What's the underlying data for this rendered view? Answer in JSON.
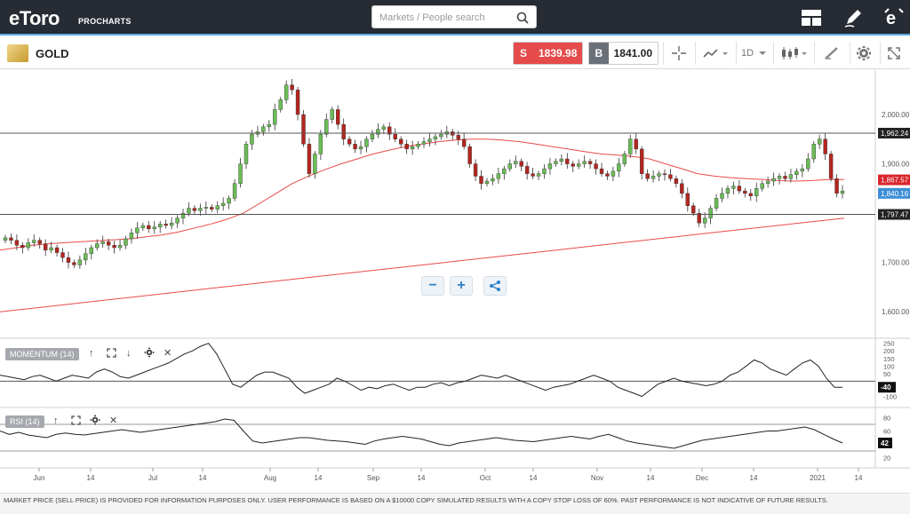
{
  "header": {
    "logo_text": "eToro",
    "logo_sub": "PROCHARTS",
    "search_placeholder": "Markets / People search"
  },
  "instrument": {
    "name": "GOLD",
    "sell_tag": "S",
    "sell_price": "1839.98",
    "buy_tag": "B",
    "buy_price": "1841.00",
    "timeframe": "1D"
  },
  "colors": {
    "sell": "#e54b4b",
    "buy": "#6b6f78",
    "up": "#6bbd56",
    "down": "#b3251f",
    "ma": "#e94a4a",
    "accent": "#2b82c9"
  },
  "price_axis": {
    "ticks": [
      "2,000.00",
      "1,900.00",
      "1,800.00",
      "1,700.00",
      "1,600.00"
    ],
    "badges": [
      {
        "label": "1,962.24",
        "color": "#222222",
        "value": 1962.24
      },
      {
        "label": "1,867.57",
        "color": "#d9262c",
        "value": 1867.57
      },
      {
        "label": "1,840.16",
        "color": "#3c8fd6",
        "value": 1840.16
      },
      {
        "label": "1,797.47",
        "color": "#222222",
        "value": 1797.47
      }
    ]
  },
  "time_axis": {
    "labels": [
      "Jun",
      "14",
      "Jul",
      "14",
      "Aug",
      "14",
      "Sep",
      "14",
      "Oct",
      "14",
      "Nov",
      "14",
      "Dec",
      "14",
      "2021",
      "14"
    ]
  },
  "indicators": {
    "momentum": {
      "label": "MOMENTUM (14)",
      "ticks": [
        "250",
        "200",
        "150",
        "100",
        "50",
        "-100"
      ],
      "badge": "-40"
    },
    "rsi": {
      "label": "RSI (14)",
      "ticks": [
        "80",
        "60",
        "20"
      ],
      "badge": "42"
    }
  },
  "disclaimer": "MARKET PRICE (SELL PRICE) IS PROVIDED FOR INFORMATION PURPOSES ONLY. USER PERFORMANCE IS BASED ON A $10000 COPY SIMULATED RESULTS WITH A COPY STOP LOSS OF 60%. PAST PERFORMANCE IS NOT INDICATIVE OF FUTURE RESULTS.",
  "chart_data": {
    "type": "candlestick",
    "price_range": [
      1550,
      2090
    ],
    "horizontal_lines": [
      1962.24,
      1797.47
    ],
    "ohlc_close_path": [
      1750,
      1745,
      1735,
      1730,
      1740,
      1745,
      1738,
      1725,
      1730,
      1720,
      1710,
      1700,
      1695,
      1705,
      1718,
      1730,
      1738,
      1742,
      1735,
      1730,
      1735,
      1748,
      1760,
      1770,
      1775,
      1768,
      1772,
      1778,
      1775,
      1780,
      1790,
      1800,
      1810,
      1805,
      1810,
      1812,
      1808,
      1815,
      1820,
      1830,
      1860,
      1900,
      1940,
      1960,
      1965,
      1975,
      1980,
      2010,
      2030,
      2060,
      2050,
      2000,
      1940,
      1880,
      1920,
      1960,
      1990,
      2010,
      1980,
      1950,
      1940,
      1930,
      1935,
      1950,
      1960,
      1970,
      1975,
      1960,
      1950,
      1940,
      1930,
      1935,
      1940,
      1945,
      1950,
      1955,
      1960,
      1965,
      1958,
      1950,
      1935,
      1900,
      1875,
      1860,
      1865,
      1870,
      1880,
      1890,
      1900,
      1905,
      1895,
      1880,
      1875,
      1880,
      1890,
      1900,
      1905,
      1910,
      1900,
      1895,
      1900,
      1905,
      1900,
      1890,
      1880,
      1875,
      1885,
      1900,
      1920,
      1950,
      1930,
      1880,
      1870,
      1875,
      1880,
      1878,
      1870,
      1860,
      1840,
      1815,
      1800,
      1780,
      1790,
      1810,
      1830,
      1840,
      1850,
      1855,
      1845,
      1840,
      1835,
      1850,
      1860,
      1865,
      1870,
      1875,
      1870,
      1878,
      1885,
      1890,
      1910,
      1940,
      1950,
      1920,
      1870,
      1840,
      1845
    ],
    "ma_short": [
      1725,
      1730,
      1735,
      1738,
      1740,
      1742,
      1744,
      1746,
      1748,
      1752,
      1756,
      1762,
      1770,
      1778,
      1788,
      1800,
      1820,
      1840,
      1860,
      1875,
      1888,
      1900,
      1910,
      1920,
      1928,
      1935,
      1940,
      1945,
      1948,
      1950,
      1950,
      1948,
      1945,
      1940,
      1935,
      1930,
      1925,
      1920,
      1918,
      1915,
      1910,
      1900,
      1890,
      1880,
      1875,
      1872,
      1870,
      1868,
      1866,
      1865,
      1866,
      1868,
      1868
    ],
    "ma_long": [
      1600,
      1610,
      1620,
      1630,
      1640,
      1650,
      1660,
      1670,
      1680,
      1690,
      1700,
      1710,
      1720,
      1730,
      1740,
      1750,
      1760,
      1770,
      1780,
      1790
    ],
    "momentum": [
      40,
      30,
      20,
      10,
      30,
      40,
      20,
      0,
      20,
      40,
      30,
      20,
      60,
      80,
      60,
      30,
      20,
      40,
      60,
      80,
      100,
      120,
      150,
      180,
      200,
      230,
      250,
      180,
      80,
      -20,
      -40,
      0,
      40,
      60,
      60,
      40,
      20,
      -40,
      -80,
      -60,
      -40,
      -20,
      20,
      0,
      -30,
      -60,
      -40,
      -50,
      -30,
      -20,
      -40,
      -60,
      -40,
      -40,
      -20,
      -10,
      -30,
      -10,
      0,
      20,
      40,
      30,
      20,
      40,
      20,
      0,
      -20,
      -40,
      -60,
      -40,
      -30,
      -20,
      0,
      20,
      40,
      20,
      0,
      -40,
      -60,
      -80,
      -100,
      -60,
      -20,
      0,
      20,
      0,
      -10,
      -20,
      -30,
      -20,
      0,
      40,
      60,
      100,
      140,
      120,
      80,
      60,
      40,
      80,
      120,
      140,
      100,
      20,
      -40,
      -40
    ],
    "rsi": [
      60,
      55,
      58,
      54,
      52,
      50,
      55,
      57,
      55,
      54,
      56,
      58,
      60,
      62,
      60,
      58,
      60,
      62,
      64,
      66,
      68,
      70,
      72,
      74,
      78,
      76,
      60,
      45,
      42,
      44,
      46,
      48,
      50,
      50,
      48,
      46,
      45,
      44,
      42,
      40,
      45,
      48,
      50,
      52,
      50,
      48,
      44,
      40,
      38,
      42,
      44,
      46,
      48,
      50,
      48,
      46,
      45,
      44,
      46,
      48,
      50,
      52,
      50,
      48,
      52,
      55,
      50,
      45,
      42,
      40,
      38,
      36,
      34,
      38,
      42,
      46,
      48,
      50,
      52,
      54,
      56,
      58,
      60,
      60,
      62,
      64,
      66,
      62,
      55,
      48,
      42
    ]
  }
}
